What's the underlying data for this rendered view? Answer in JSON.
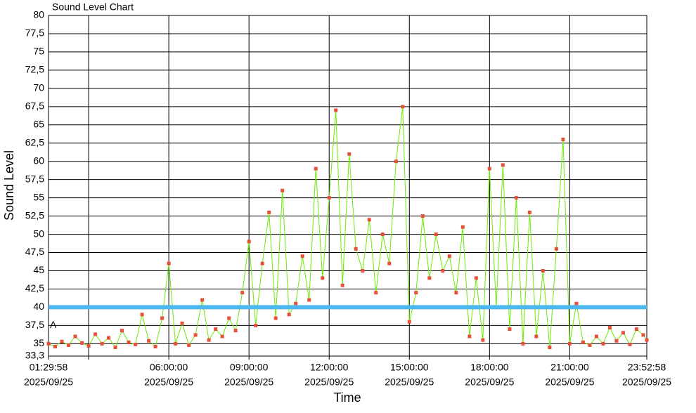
{
  "chart_data": {
    "type": "line",
    "title": "Sound Level Chart",
    "xlabel": "Time",
    "ylabel": "Sound Level",
    "annotation": "A",
    "threshold": {
      "value": 40,
      "color": "#4db8ee"
    },
    "line_color": "#66ee00",
    "marker_color": "#e8503a",
    "grid": true,
    "xlim": [
      "2025/09/25 01:29:58",
      "2025/09/25 23:52:58"
    ],
    "xticks": [
      {
        "value": "2025/09/25 01:29:58",
        "label": [
          "01:29:58",
          "2025/09/25"
        ]
      },
      {
        "value": "2025/09/25 03:00:00",
        "label": null
      },
      {
        "value": "2025/09/25 06:00:00",
        "label": [
          "06:00:00",
          "2025/09/25"
        ]
      },
      {
        "value": "2025/09/25 09:00:00",
        "label": [
          "09:00:00",
          "2025/09/25"
        ]
      },
      {
        "value": "2025/09/25 12:00:00",
        "label": [
          "12:00:00",
          "2025/09/25"
        ]
      },
      {
        "value": "2025/09/25 15:00:00",
        "label": [
          "15:00:00",
          "2025/09/25"
        ]
      },
      {
        "value": "2025/09/25 18:00:00",
        "label": [
          "18:00:00",
          "2025/09/25"
        ]
      },
      {
        "value": "2025/09/25 21:00:00",
        "label": [
          "21:00:00",
          "2025/09/25"
        ]
      },
      {
        "value": "2025/09/25 23:52:58",
        "label": [
          "23:52:58",
          "2025/09/25"
        ]
      }
    ],
    "ylim": [
      33.3,
      80
    ],
    "yticks": [
      {
        "value": 33.3,
        "label": "33,3"
      },
      35,
      {
        "value": 37.5,
        "label": "37,5"
      },
      40,
      {
        "value": 42.5,
        "label": "42,5"
      },
      45,
      {
        "value": 47.5,
        "label": "47,5"
      },
      50,
      {
        "value": 52.5,
        "label": "52,5"
      },
      55,
      {
        "value": 57.5,
        "label": "57,5"
      },
      60,
      {
        "value": 62.5,
        "label": "62,5"
      },
      65,
      {
        "value": 67.5,
        "label": "67,5"
      },
      70,
      {
        "value": 72.5,
        "label": "72,5"
      },
      75,
      {
        "value": 77.5,
        "label": "77,5"
      },
      80
    ],
    "x": [
      "2025/09/25 01:29:58",
      "2025/09/25 01:45:00",
      "2025/09/25 02:00:00",
      "2025/09/25 02:15:00",
      "2025/09/25 02:30:00",
      "2025/09/25 02:45:00",
      "2025/09/25 03:00:00",
      "2025/09/25 03:15:00",
      "2025/09/25 03:30:00",
      "2025/09/25 03:45:00",
      "2025/09/25 04:00:00",
      "2025/09/25 04:15:00",
      "2025/09/25 04:30:00",
      "2025/09/25 04:45:00",
      "2025/09/25 05:00:00",
      "2025/09/25 05:15:00",
      "2025/09/25 05:30:00",
      "2025/09/25 05:45:00",
      "2025/09/25 06:00:00",
      "2025/09/25 06:15:00",
      "2025/09/25 06:30:00",
      "2025/09/25 06:45:00",
      "2025/09/25 07:00:00",
      "2025/09/25 07:15:00",
      "2025/09/25 07:30:00",
      "2025/09/25 07:45:00",
      "2025/09/25 08:00:00",
      "2025/09/25 08:15:00",
      "2025/09/25 08:30:00",
      "2025/09/25 08:45:00",
      "2025/09/25 09:00:00",
      "2025/09/25 09:15:00",
      "2025/09/25 09:30:00",
      "2025/09/25 09:45:00",
      "2025/09/25 10:00:00",
      "2025/09/25 10:15:00",
      "2025/09/25 10:30:00",
      "2025/09/25 10:45:00",
      "2025/09/25 11:00:00",
      "2025/09/25 11:15:00",
      "2025/09/25 11:30:00",
      "2025/09/25 11:45:00",
      "2025/09/25 12:00:00",
      "2025/09/25 12:15:00",
      "2025/09/25 12:30:00",
      "2025/09/25 12:45:00",
      "2025/09/25 13:00:00",
      "2025/09/25 13:15:00",
      "2025/09/25 13:30:00",
      "2025/09/25 13:45:00",
      "2025/09/25 14:00:00",
      "2025/09/25 14:15:00",
      "2025/09/25 14:30:00",
      "2025/09/25 14:45:00",
      "2025/09/25 15:00:00",
      "2025/09/25 15:15:00",
      "2025/09/25 15:30:00",
      "2025/09/25 15:45:00",
      "2025/09/25 16:00:00",
      "2025/09/25 16:15:00",
      "2025/09/25 16:30:00",
      "2025/09/25 16:45:00",
      "2025/09/25 17:00:00",
      "2025/09/25 17:15:00",
      "2025/09/25 17:30:00",
      "2025/09/25 17:45:00",
      "2025/09/25 18:00:00",
      "2025/09/25 18:15:00",
      "2025/09/25 18:30:00",
      "2025/09/25 18:45:00",
      "2025/09/25 19:00:00",
      "2025/09/25 19:15:00",
      "2025/09/25 19:30:00",
      "2025/09/25 19:45:00",
      "2025/09/25 20:00:00",
      "2025/09/25 20:15:00",
      "2025/09/25 20:30:00",
      "2025/09/25 20:45:00",
      "2025/09/25 21:00:00",
      "2025/09/25 21:15:00",
      "2025/09/25 21:30:00",
      "2025/09/25 21:45:00",
      "2025/09/25 22:00:00",
      "2025/09/25 22:15:00",
      "2025/09/25 22:30:00",
      "2025/09/25 22:45:00",
      "2025/09/25 23:00:00",
      "2025/09/25 23:15:00",
      "2025/09/25 23:30:00",
      "2025/09/25 23:45:00",
      "2025/09/25 23:52:58"
    ],
    "values": [
      35.0,
      34.6,
      35.3,
      34.8,
      36.0,
      35.1,
      34.7,
      36.3,
      35.0,
      35.8,
      34.5,
      36.8,
      35.2,
      34.9,
      39.0,
      35.4,
      34.6,
      38.5,
      46.0,
      35.0,
      37.8,
      34.8,
      36.2,
      41.0,
      35.5,
      37.0,
      36.0,
      38.5,
      36.8,
      42.0,
      49.0,
      37.5,
      46.0,
      53.0,
      38.5,
      56.0,
      39.0,
      40.5,
      47.0,
      41.0,
      59.0,
      44.0,
      55.0,
      67.0,
      43.0,
      61.0,
      48.0,
      45.0,
      52.0,
      42.0,
      50.0,
      46.0,
      60.0,
      67.5,
      38.0,
      42.0,
      52.5,
      44.0,
      50.0,
      45.0,
      47.0,
      42.0,
      51.0,
      36.0,
      44.0,
      35.5,
      59.0,
      40.0,
      59.5,
      37.0,
      55.0,
      35.0,
      53.0,
      36.0,
      45.0,
      34.5,
      48.0,
      63.0,
      35.0,
      40.5,
      35.2,
      34.8,
      36.0,
      35.0,
      37.2,
      35.4,
      36.5,
      34.9,
      37.0,
      36.2,
      35.5
    ]
  }
}
